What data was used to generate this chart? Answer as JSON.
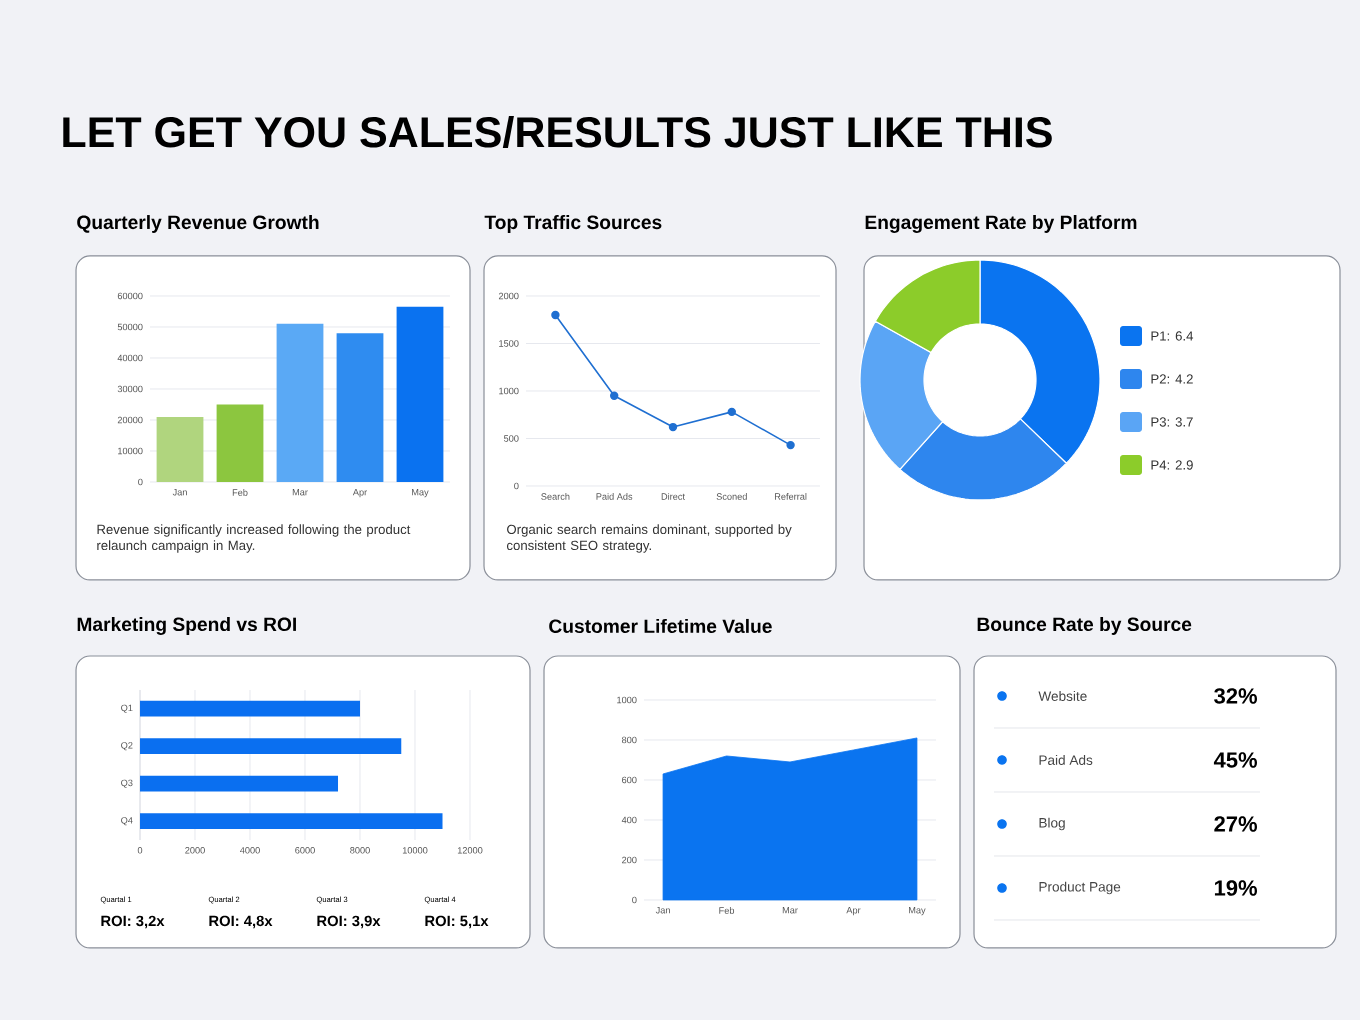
{
  "chart_data": [
    {
      "type": "other",
      "title": "LET GET YOU SALES/RESULTS JUST LIKE THIS"
    },
    {
      "type": "bar",
      "title": "Quarterly Revenue Growth",
      "categories": [
        "Jan",
        "Feb",
        "Mar",
        "Apr",
        "May"
      ],
      "values": [
        21000,
        25000,
        51000,
        48000,
        56500
      ],
      "colors": [
        "#b0d57e",
        "#8cc63f",
        "#5aa9f5",
        "#2f8cf0",
        "#0a72f0"
      ],
      "ylim": [
        0,
        60000
      ],
      "yticks": [
        0,
        10000,
        20000,
        30000,
        40000,
        50000,
        60000
      ],
      "grid": "y",
      "annotations": [
        "Revenue significantly increased following the product relaunch campaign in May."
      ]
    },
    {
      "type": "line",
      "title": "Top Traffic Sources",
      "categories": [
        "Search",
        "Paid Ads",
        "Direct",
        "Sconed",
        "Referral"
      ],
      "values": [
        1800,
        950,
        620,
        780,
        430
      ],
      "color": "#1f6fd1",
      "marker": "circle",
      "ylim": [
        0,
        2000
      ],
      "yticks": [
        0,
        500,
        1000,
        1500,
        2000
      ],
      "grid": "y",
      "annotations": [
        "Organic search remains dominant, supported by consistent SEO strategy."
      ]
    },
    {
      "type": "donut",
      "title": "Engagement Rate by Platform",
      "categories": [
        "P1: 6.4",
        "P2: 4.2",
        "P3: 3.7",
        "P4: 2.9"
      ],
      "values": [
        6.4,
        4.2,
        3.7,
        2.9
      ],
      "colors": [
        "#0a74f0",
        "#2e86ee",
        "#5aa5f5",
        "#8ccc2a"
      ],
      "legend": "right"
    },
    {
      "type": "bar",
      "orientation": "horizontal",
      "title": "Marketing Spend vs ROI",
      "categories": [
        "Q1",
        "Q2",
        "Q3",
        "Q4"
      ],
      "values": [
        8000,
        9500,
        7200,
        11000
      ],
      "color": "#0a6ff0",
      "xlim": [
        0,
        12000
      ],
      "xticks": [
        0,
        2000,
        4000,
        6000,
        8000,
        10000,
        12000
      ],
      "grid": "x",
      "annotations": [
        "Quartal 1",
        "ROI: 3,2x",
        "Quartal 2",
        "ROI: 4,8x",
        "Quartal 3",
        "ROI: 3,9x",
        "Quartal 4",
        "ROI: 5,1x"
      ]
    },
    {
      "type": "area",
      "title": "Customer Lifetime Value",
      "categories": [
        "Jan",
        "Feb",
        "Mar",
        "Apr",
        "May"
      ],
      "values": [
        630,
        720,
        690,
        750,
        810
      ],
      "color": "#0a74f0",
      "ylim": [
        0,
        1000
      ],
      "yticks": [
        0,
        200,
        400,
        600,
        800,
        1000
      ],
      "grid": "y"
    },
    {
      "type": "other",
      "title": "Bounce Rate by Source",
      "categories": [
        "Website",
        "Paid Ads",
        "Blog",
        "Product Page"
      ],
      "value_labels": [
        "32%",
        "45%",
        "27%",
        "19%"
      ],
      "color": "#0a74f0"
    }
  ]
}
